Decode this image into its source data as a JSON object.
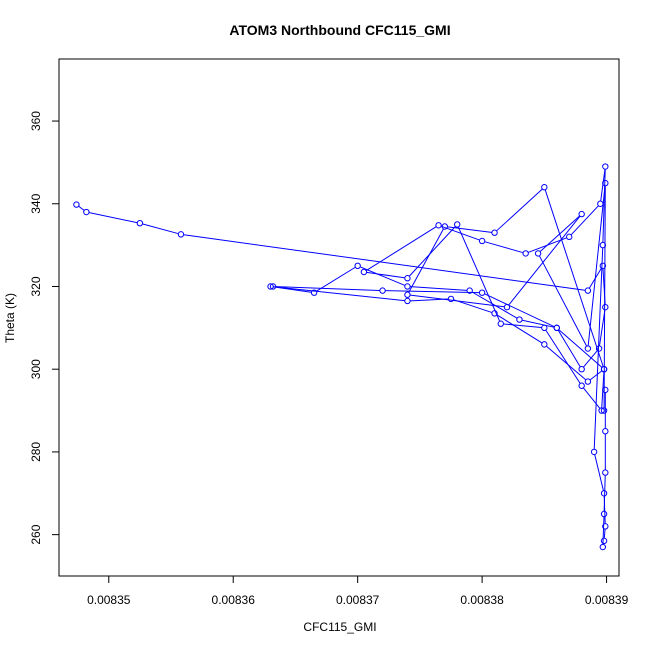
{
  "chart_data": {
    "type": "line",
    "title": "ATOM3 Northbound CFC115_GMI",
    "xlabel": "CFC115_GMI",
    "ylabel": "Theta (K)",
    "xlim": [
      0.008346,
      0.008391
    ],
    "ylim": [
      250,
      375
    ],
    "x_ticks": [
      "0.00835",
      "0.00836",
      "0.00837",
      "0.00838",
      "0.00839"
    ],
    "y_ticks": [
      "260",
      "280",
      "300",
      "320",
      "340",
      "360"
    ],
    "grid": false,
    "colors": {
      "series": "#0000ff"
    },
    "series": [
      {
        "x": [
          0.0083474,
          0.0083482,
          0.0083525,
          0.0083558,
          0.0083885,
          0.0083897,
          0.0083899,
          0.0083894,
          0.008388,
          0.008386,
          0.008383,
          0.008379,
          0.008374,
          0.00837,
          0.0083665,
          0.008363,
          0.008374,
          0.0083775,
          0.008381,
          0.008385,
          0.0083885,
          0.0083898,
          0.0083896,
          0.008388,
          0.008385,
          0.0083815,
          0.008378,
          0.008374,
          0.0083705,
          0.0083765,
          0.00838,
          0.0083835,
          0.008387,
          0.0083895,
          0.0083899,
          0.0083897,
          0.008389,
          0.0083898,
          0.0083899,
          0.0083898,
          0.0083897,
          0.0083898,
          0.0083899,
          0.0083899,
          0.0083899
        ],
        "y": [
          339.8,
          338.0,
          335.3,
          332.6,
          319.0,
          325.0,
          315.0,
          305.0,
          300.0,
          310.0,
          312.0,
          319.0,
          320.0,
          325.0,
          318.5,
          320.0,
          316.5,
          317.0,
          313.5,
          306.0,
          297.0,
          300.0,
          290.0,
          296.0,
          310.0,
          311.0,
          335.0,
          322.0,
          323.5,
          334.8,
          331.0,
          328.0,
          332.0,
          340.0,
          349.0,
          330.0,
          280.0,
          270.0,
          262.0,
          258.5,
          257.0,
          265.0,
          275.0,
          285.0,
          295.0
        ]
      },
      {
        "x": [
          0.0083632,
          0.008372,
          0.00838,
          0.008386,
          0.0083898,
          0.008385,
          0.008381,
          0.008377,
          0.008374,
          0.008382,
          0.008388,
          0.0083845,
          0.0083885,
          0.0083899,
          0.0083898
        ],
        "y": [
          320.0,
          319.0,
          318.5,
          310.0,
          300.0,
          344.0,
          333.0,
          334.5,
          318.0,
          315.0,
          337.5,
          328.0,
          305.0,
          345.0,
          290.0
        ]
      }
    ]
  }
}
